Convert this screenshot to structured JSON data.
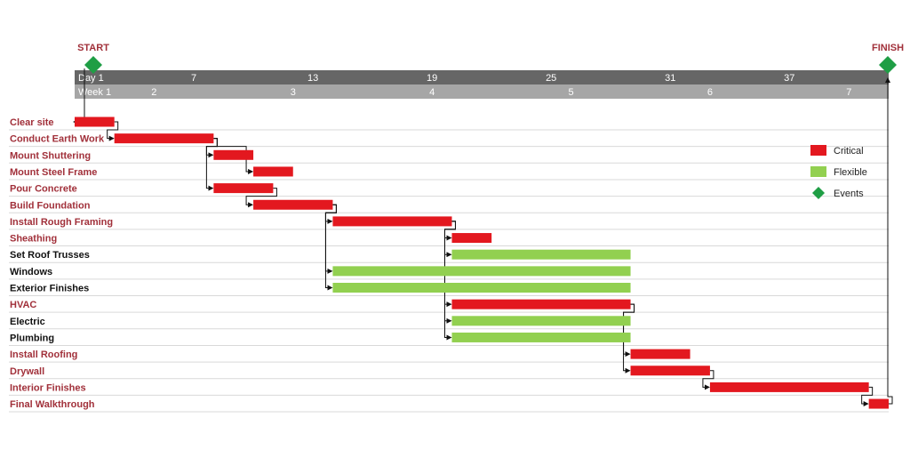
{
  "chart_data": {
    "type": "gantt",
    "events": {
      "start": "START",
      "finish": "FINISH"
    },
    "day_ticks": [
      {
        "day": 1,
        "label": "Day 1"
      },
      {
        "day": 7,
        "label": "7"
      },
      {
        "day": 13,
        "label": "13"
      },
      {
        "day": 19,
        "label": "19"
      },
      {
        "day": 25,
        "label": "25"
      },
      {
        "day": 31,
        "label": "31"
      },
      {
        "day": 37,
        "label": "37"
      }
    ],
    "week_ticks": [
      {
        "day": 1,
        "label": "Week 1"
      },
      {
        "day": 5,
        "label": "2"
      },
      {
        "day": 12,
        "label": "3"
      },
      {
        "day": 19,
        "label": "4"
      },
      {
        "day": 26,
        "label": "5"
      },
      {
        "day": 33,
        "label": "6"
      },
      {
        "day": 40,
        "label": "7"
      }
    ],
    "x_range": [
      1,
      42
    ],
    "legend": [
      {
        "label": "Critical",
        "color": "#e3181f",
        "shape": "rect"
      },
      {
        "label": "Flexible",
        "color": "#92d050",
        "shape": "rect"
      },
      {
        "label": "Events",
        "color": "#1f9e45",
        "shape": "diamond"
      }
    ],
    "legend_position": "right",
    "colors": {
      "critical": "#e3181f",
      "flexible": "#92d050",
      "event": "#1f9e45",
      "critical_text": "#a1303a",
      "flexible_text": "#111111",
      "timeline_dark": "#666666",
      "timeline_light": "#a6a6a6"
    },
    "tasks": [
      {
        "name": "Clear site",
        "start": 1,
        "end": 3,
        "type": "critical"
      },
      {
        "name": "Conduct Earth Work",
        "start": 3,
        "end": 8,
        "type": "critical"
      },
      {
        "name": "Mount Shuttering",
        "start": 8,
        "end": 10,
        "type": "critical"
      },
      {
        "name": "Mount  Steel Frame",
        "start": 10,
        "end": 12,
        "type": "critical"
      },
      {
        "name": "Pour Concrete",
        "start": 8,
        "end": 11,
        "type": "critical"
      },
      {
        "name": "Build Foundation",
        "start": 10,
        "end": 14,
        "type": "critical"
      },
      {
        "name": "Install Rough Framing",
        "start": 14,
        "end": 20,
        "type": "critical"
      },
      {
        "name": "Sheathing",
        "start": 20,
        "end": 22,
        "type": "critical"
      },
      {
        "name": "Set Roof Trusses",
        "start": 20,
        "end": 29,
        "type": "flexible"
      },
      {
        "name": "Windows",
        "start": 14,
        "end": 29,
        "type": "flexible"
      },
      {
        "name": "Exterior Finishes",
        "start": 14,
        "end": 29,
        "type": "flexible"
      },
      {
        "name": "HVAC",
        "start": 20,
        "end": 29,
        "type": "critical"
      },
      {
        "name": "Electric",
        "start": 20,
        "end": 29,
        "type": "flexible"
      },
      {
        "name": "Plumbing",
        "start": 20,
        "end": 29,
        "type": "flexible"
      },
      {
        "name": "Install Roofing",
        "start": 29,
        "end": 32,
        "type": "critical"
      },
      {
        "name": "Drywall",
        "start": 29,
        "end": 33,
        "type": "critical"
      },
      {
        "name": "Interior Finishes",
        "start": 33,
        "end": 41,
        "type": "critical"
      },
      {
        "name": "Final Walkthrough",
        "start": 41,
        "end": 42,
        "type": "critical"
      }
    ],
    "dependencies": [
      [
        0,
        1
      ],
      [
        1,
        2
      ],
      [
        1,
        3
      ],
      [
        1,
        4
      ],
      [
        4,
        5
      ],
      [
        5,
        6
      ],
      [
        5,
        9
      ],
      [
        5,
        10
      ],
      [
        6,
        7
      ],
      [
        6,
        8
      ],
      [
        6,
        11
      ],
      [
        6,
        12
      ],
      [
        6,
        13
      ],
      [
        11,
        14
      ],
      [
        11,
        15
      ],
      [
        15,
        16
      ],
      [
        16,
        17
      ]
    ]
  }
}
